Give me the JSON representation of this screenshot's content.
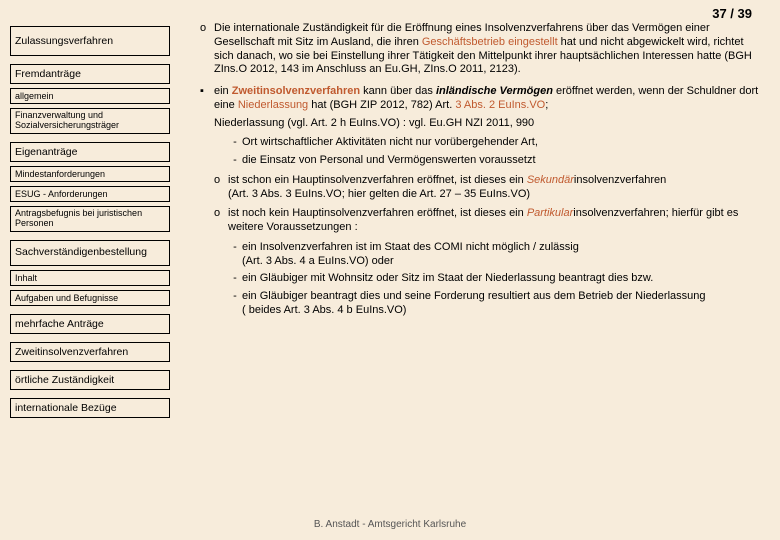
{
  "pageNumber": "37 / 39",
  "sidebar": [
    {
      "label": "Zulassungsverfahren",
      "cls": "lvl0"
    },
    {
      "label": "Fremdanträge",
      "cls": "lvl1"
    },
    {
      "label": "allgemein",
      "cls": "lvl2"
    },
    {
      "label": "Finanzverwaltung und Sozialversicherungsträger",
      "cls": "lvl2 multiline"
    },
    {
      "label": "Eigenanträge",
      "cls": "lvl1"
    },
    {
      "label": "Mindestanforderungen",
      "cls": "lvl2"
    },
    {
      "label": "ESUG - Anforderungen",
      "cls": "lvl2"
    },
    {
      "label": "Antragsbefugnis bei juristischen Personen",
      "cls": "lvl2 multiline"
    },
    {
      "label": "Sachverständigen­bestellung",
      "cls": "lvl1 multiline"
    },
    {
      "label": "Inhalt",
      "cls": "lvl2"
    },
    {
      "label": "Aufgaben und Befugnisse",
      "cls": "lvl2"
    },
    {
      "label": "mehrfache Anträge",
      "cls": "lvl1"
    },
    {
      "label": "Zweitinsolvenzverfahren",
      "cls": "lvl1"
    },
    {
      "label": "örtliche Zuständigkeit",
      "cls": "lvl1"
    },
    {
      "label": "internationale Bezüge",
      "cls": "lvl1"
    }
  ],
  "content": {
    "p1": {
      "a": "Die internationale Zuständigkeit für die Eröffnung eines Insolvenzverfahrens über das Vermögen einer Gesellschaft mit Sitz im Ausland, die ihren ",
      "b": "Geschäftsbetrieb eingestellt",
      "c": " hat und nicht abgewickelt wird, richtet sich danach, wo sie bei Einstellung ihrer Tätigkeit den Mittelpunkt ihrer hauptsächlichen Interessen hatte (BGH ZIns.O 2012, 143 im Anschluss an Eu.GH, ZIns.O 2011, 2123)."
    },
    "p2": {
      "a": "ein ",
      "b": "Zweitinsolvenzverfahren",
      "c": " kann über das ",
      "d": "inländische Vermögen",
      "e": " eröffnet werden, wenn der Schuldner dort eine ",
      "f": "Niederlassung",
      "g": " hat (BGH ZIP 2012, 782) Art. ",
      "h": "3 Abs. 2 EuIns.VO",
      "i": ";"
    },
    "p3": "Niederlassung (vgl. Art. 2 h EuIns.VO) : vgl. Eu.GH NZI 2011, 990",
    "p4": "Ort wirtschaftlicher Aktivitäten nicht nur vorübergehender Art,",
    "p5": "die Einsatz von Personal und Vermögenswerten voraussetzt",
    "p6": {
      "a": "ist schon ein Hauptinsolvenzverfahren eröffnet, ist dieses ein ",
      "b": "Sekundär",
      "c": "insolvenzverfahren",
      "d": "(Art. 3 Abs. 3 EuIns.VO; hier gelten die Art. 27 – 35 EuIns.VO)"
    },
    "p7": {
      "a": "ist noch kein Hauptinsolvenzverfahren eröffnet, ist dieses ein ",
      "b": "Partikular",
      "c": "insolvenzverfahren; hierfür gibt es weitere Voraussetzungen :"
    },
    "p8": {
      "a": "ein Insolvenzverfahren ist im Staat des COMI nicht möglich / zulässig",
      "b": "(Art. 3 Abs. 4 a EuIns.VO) oder"
    },
    "p9": "ein Gläubiger mit Wohnsitz oder Sitz im Staat der Niederlassung beantragt dies bzw.",
    "p10": {
      "a": "ein Gläubiger beantragt dies und seine Forderung resultiert aus dem Betrieb der Niederlassung",
      "b": "( beides Art. 3 Abs. 4 b EuIns.VO)"
    }
  },
  "footer": "B. Anstadt - Amtsgericht Karlsruhe",
  "colors": {
    "red": "#c05a2f",
    "bg": "#f7ecdb"
  }
}
